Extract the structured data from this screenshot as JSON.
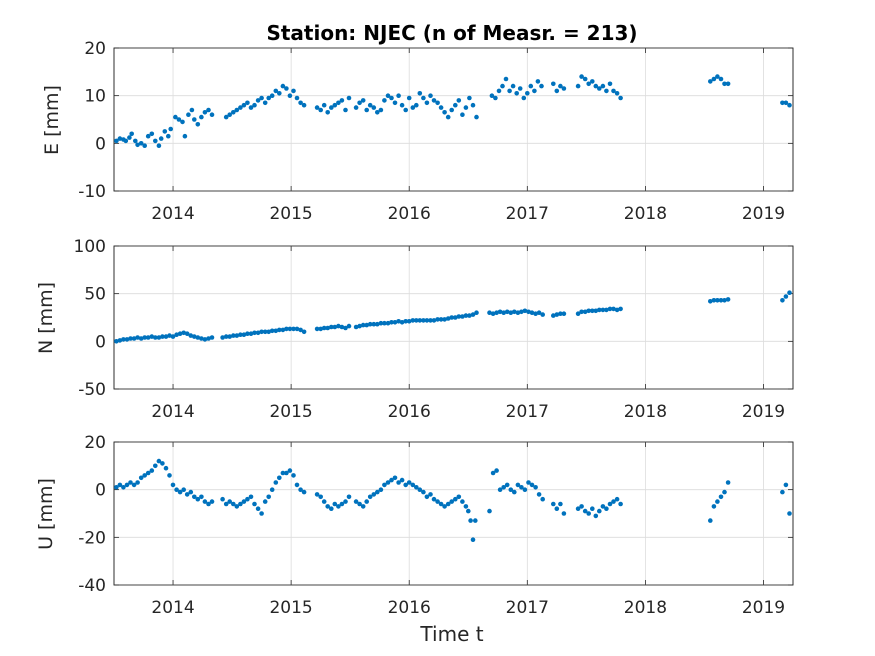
{
  "figure": {
    "title": "Station: NJEC (n of Measr. = 213)",
    "xlabel": "Time t",
    "marker_color": "#0072BD"
  },
  "chart_data": [
    {
      "type": "scatter",
      "ylabel": "E [mm]",
      "xlim": [
        2013.5,
        2019.25
      ],
      "ylim": [
        -10,
        20
      ],
      "xticks": [
        2014,
        2015,
        2016,
        2017,
        2018,
        2019
      ],
      "yticks": [
        -10,
        0,
        10,
        20
      ],
      "grid": true,
      "x": [
        2013.52,
        2013.55,
        2013.58,
        2013.6,
        2013.63,
        2013.65,
        2013.68,
        2013.7,
        2013.73,
        2013.76,
        2013.79,
        2013.82,
        2013.85,
        2013.88,
        2013.9,
        2013.93,
        2013.96,
        2013.98,
        2014.02,
        2014.05,
        2014.08,
        2014.1,
        2014.13,
        2014.16,
        2014.18,
        2014.21,
        2014.24,
        2014.27,
        2014.3,
        2014.33,
        2014.45,
        2014.48,
        2014.51,
        2014.54,
        2014.57,
        2014.6,
        2014.63,
        2014.66,
        2014.69,
        2014.72,
        2014.75,
        2014.78,
        2014.81,
        2014.84,
        2014.87,
        2014.9,
        2014.93,
        2014.96,
        2014.99,
        2015.02,
        2015.05,
        2015.08,
        2015.11,
        2015.22,
        2015.25,
        2015.28,
        2015.31,
        2015.34,
        2015.37,
        2015.4,
        2015.43,
        2015.46,
        2015.49,
        2015.55,
        2015.58,
        2015.61,
        2015.64,
        2015.67,
        2015.7,
        2015.73,
        2015.76,
        2015.79,
        2015.82,
        2015.85,
        2015.88,
        2015.91,
        2015.94,
        2015.97,
        2016.0,
        2016.03,
        2016.06,
        2016.09,
        2016.12,
        2016.15,
        2016.18,
        2016.21,
        2016.24,
        2016.27,
        2016.3,
        2016.33,
        2016.36,
        2016.39,
        2016.42,
        2016.45,
        2016.48,
        2016.51,
        2016.54,
        2016.57,
        2016.7,
        2016.73,
        2016.76,
        2016.79,
        2016.82,
        2016.85,
        2016.88,
        2016.91,
        2016.94,
        2016.97,
        2017.0,
        2017.03,
        2017.06,
        2017.09,
        2017.12,
        2017.22,
        2017.25,
        2017.28,
        2017.31,
        2017.43,
        2017.46,
        2017.49,
        2017.52,
        2017.55,
        2017.58,
        2017.61,
        2017.64,
        2017.67,
        2017.7,
        2017.73,
        2017.76,
        2017.79,
        2018.55,
        2018.58,
        2018.61,
        2018.64,
        2018.67,
        2018.7,
        2019.16,
        2019.19,
        2019.22
      ],
      "y": [
        0.5,
        1.0,
        0.8,
        0.5,
        1.2,
        2.0,
        0.5,
        -0.3,
        0.0,
        -0.5,
        1.5,
        2.0,
        0.5,
        -0.5,
        1.0,
        2.5,
        1.5,
        3.0,
        5.5,
        5.0,
        4.5,
        1.5,
        6.0,
        7.0,
        5.0,
        4.0,
        5.5,
        6.5,
        7.0,
        6.0,
        5.5,
        6.0,
        6.5,
        7.0,
        7.5,
        8.0,
        8.5,
        7.5,
        8.0,
        9.0,
        9.5,
        8.5,
        9.5,
        10.0,
        11.0,
        10.5,
        12.0,
        11.5,
        10.0,
        11.0,
        9.5,
        8.5,
        8.0,
        7.5,
        7.0,
        8.0,
        6.5,
        7.5,
        8.0,
        8.5,
        9.0,
        7.0,
        9.5,
        7.5,
        8.5,
        9.0,
        7.0,
        8.0,
        7.5,
        6.5,
        7.0,
        9.0,
        10.0,
        9.5,
        8.5,
        10.0,
        8.0,
        7.0,
        9.5,
        7.5,
        8.0,
        10.5,
        9.5,
        8.5,
        10.0,
        9.0,
        8.5,
        7.5,
        6.5,
        5.5,
        7.0,
        8.0,
        9.0,
        6.0,
        7.5,
        9.5,
        8.0,
        5.5,
        10.0,
        9.5,
        11.0,
        12.0,
        13.5,
        11.0,
        12.0,
        10.5,
        11.5,
        9.5,
        10.5,
        12.0,
        11.0,
        13.0,
        12.0,
        12.5,
        11.0,
        12.0,
        11.5,
        12.0,
        14.0,
        13.5,
        12.5,
        13.0,
        12.0,
        11.5,
        12.0,
        11.0,
        12.5,
        11.0,
        10.5,
        9.5,
        13.0,
        13.5,
        14.0,
        13.5,
        12.5,
        12.5,
        8.5,
        8.5,
        8.0
      ]
    },
    {
      "type": "scatter",
      "ylabel": "N [mm]",
      "xlim": [
        2013.5,
        2019.25
      ],
      "ylim": [
        -50,
        100
      ],
      "xticks": [
        2014,
        2015,
        2016,
        2017,
        2018,
        2019
      ],
      "yticks": [
        -50,
        0,
        50,
        100
      ],
      "grid": true,
      "x": [
        2013.52,
        2013.55,
        2013.58,
        2013.61,
        2013.64,
        2013.67,
        2013.7,
        2013.73,
        2013.76,
        2013.79,
        2013.82,
        2013.85,
        2013.88,
        2013.91,
        2013.94,
        2013.97,
        2014.0,
        2014.03,
        2014.06,
        2014.09,
        2014.12,
        2014.15,
        2014.18,
        2014.21,
        2014.24,
        2014.27,
        2014.3,
        2014.33,
        2014.42,
        2014.45,
        2014.48,
        2014.51,
        2014.54,
        2014.57,
        2014.6,
        2014.63,
        2014.66,
        2014.69,
        2014.72,
        2014.75,
        2014.78,
        2014.81,
        2014.84,
        2014.87,
        2014.9,
        2014.93,
        2014.96,
        2014.99,
        2015.02,
        2015.05,
        2015.08,
        2015.11,
        2015.22,
        2015.25,
        2015.28,
        2015.31,
        2015.34,
        2015.37,
        2015.4,
        2015.43,
        2015.46,
        2015.49,
        2015.55,
        2015.58,
        2015.61,
        2015.64,
        2015.67,
        2015.7,
        2015.73,
        2015.76,
        2015.79,
        2015.82,
        2015.85,
        2015.88,
        2015.91,
        2015.94,
        2015.97,
        2016.0,
        2016.03,
        2016.06,
        2016.09,
        2016.12,
        2016.15,
        2016.18,
        2016.21,
        2016.24,
        2016.27,
        2016.3,
        2016.33,
        2016.36,
        2016.39,
        2016.42,
        2016.45,
        2016.48,
        2016.51,
        2016.54,
        2016.57,
        2016.68,
        2016.71,
        2016.74,
        2016.77,
        2016.8,
        2016.83,
        2016.86,
        2016.89,
        2016.92,
        2016.95,
        2016.98,
        2017.01,
        2017.04,
        2017.07,
        2017.1,
        2017.13,
        2017.22,
        2017.25,
        2017.28,
        2017.31,
        2017.43,
        2017.46,
        2017.49,
        2017.52,
        2017.55,
        2017.58,
        2017.61,
        2017.64,
        2017.67,
        2017.7,
        2017.73,
        2017.76,
        2017.79,
        2018.55,
        2018.58,
        2018.61,
        2018.64,
        2018.67,
        2018.7,
        2019.16,
        2019.19,
        2019.22
      ],
      "y": [
        0,
        1,
        2,
        2,
        3,
        3,
        4,
        3,
        4,
        4,
        5,
        4,
        4,
        5,
        5,
        6,
        5,
        7,
        8,
        9,
        8,
        6,
        5,
        4,
        3,
        2,
        3,
        4,
        4,
        5,
        5,
        6,
        6,
        7,
        7,
        8,
        8,
        9,
        9,
        10,
        10,
        10,
        11,
        11,
        12,
        12,
        13,
        13,
        13,
        13,
        12,
        10,
        13,
        13,
        14,
        14,
        15,
        15,
        16,
        15,
        14,
        16,
        15,
        16,
        17,
        17,
        18,
        18,
        18,
        19,
        19,
        19,
        20,
        20,
        21,
        20,
        21,
        21,
        22,
        22,
        22,
        22,
        22,
        22,
        22,
        23,
        23,
        23,
        24,
        25,
        25,
        26,
        26,
        27,
        27,
        28,
        30,
        30,
        29,
        30,
        31,
        30,
        31,
        30,
        31,
        30,
        31,
        32,
        31,
        30,
        29,
        30,
        28,
        27,
        28,
        29,
        29,
        29,
        31,
        31,
        32,
        32,
        32,
        33,
        33,
        33,
        34,
        34,
        33,
        34,
        42,
        43,
        43,
        43,
        43,
        44,
        43,
        47,
        51
      ]
    },
    {
      "type": "scatter",
      "ylabel": "U [mm]",
      "xlim": [
        2013.5,
        2019.25
      ],
      "ylim": [
        -40,
        20
      ],
      "xticks": [
        2014,
        2015,
        2016,
        2017,
        2018,
        2019
      ],
      "yticks": [
        -40,
        -20,
        0,
        20
      ],
      "grid": true,
      "x": [
        2013.52,
        2013.55,
        2013.58,
        2013.61,
        2013.64,
        2013.67,
        2013.7,
        2013.73,
        2013.76,
        2013.79,
        2013.82,
        2013.85,
        2013.88,
        2013.91,
        2013.94,
        2013.97,
        2014.0,
        2014.03,
        2014.06,
        2014.09,
        2014.12,
        2014.15,
        2014.18,
        2014.21,
        2014.24,
        2014.27,
        2014.3,
        2014.33,
        2014.42,
        2014.45,
        2014.48,
        2014.51,
        2014.54,
        2014.57,
        2014.6,
        2014.63,
        2014.66,
        2014.69,
        2014.72,
        2014.75,
        2014.78,
        2014.81,
        2014.84,
        2014.87,
        2014.9,
        2014.93,
        2014.96,
        2014.99,
        2015.02,
        2015.05,
        2015.08,
        2015.11,
        2015.22,
        2015.25,
        2015.28,
        2015.31,
        2015.34,
        2015.37,
        2015.4,
        2015.43,
        2015.46,
        2015.49,
        2015.55,
        2015.58,
        2015.61,
        2015.64,
        2015.67,
        2015.7,
        2015.73,
        2015.76,
        2015.79,
        2015.82,
        2015.85,
        2015.88,
        2015.91,
        2015.94,
        2015.97,
        2016.0,
        2016.03,
        2016.06,
        2016.09,
        2016.12,
        2016.15,
        2016.18,
        2016.21,
        2016.24,
        2016.27,
        2016.3,
        2016.33,
        2016.36,
        2016.39,
        2016.42,
        2016.45,
        2016.48,
        2016.5,
        2016.52,
        2016.54,
        2016.56,
        2016.68,
        2016.71,
        2016.74,
        2016.77,
        2016.8,
        2016.83,
        2016.86,
        2016.89,
        2016.92,
        2016.95,
        2016.98,
        2017.01,
        2017.04,
        2017.07,
        2017.1,
        2017.13,
        2017.22,
        2017.25,
        2017.28,
        2017.31,
        2017.43,
        2017.46,
        2017.49,
        2017.52,
        2017.55,
        2017.58,
        2017.61,
        2017.64,
        2017.67,
        2017.7,
        2017.73,
        2017.76,
        2017.79,
        2018.55,
        2018.58,
        2018.61,
        2018.64,
        2018.67,
        2018.7,
        2019.16,
        2019.19,
        2019.22
      ],
      "y": [
        1,
        2,
        1,
        2,
        3,
        2,
        3,
        5,
        6,
        7,
        8,
        10,
        12,
        11,
        9,
        6,
        2,
        0,
        -1,
        0,
        -2,
        -1,
        -3,
        -4,
        -3,
        -5,
        -6,
        -5,
        -4,
        -6,
        -5,
        -6,
        -7,
        -6,
        -5,
        -4,
        -3,
        -6,
        -8,
        -10,
        -5,
        -3,
        0,
        3,
        5,
        7,
        7,
        8,
        6,
        2,
        0,
        -1,
        -2,
        -3,
        -5,
        -7,
        -8,
        -6,
        -7,
        -6,
        -5,
        -3,
        -5,
        -6,
        -7,
        -5,
        -3,
        -2,
        -1,
        0,
        2,
        3,
        4,
        5,
        3,
        4,
        2,
        3,
        2,
        1,
        0,
        -1,
        -3,
        -2,
        -4,
        -5,
        -6,
        -7,
        -6,
        -5,
        -4,
        -3,
        -5,
        -7,
        -9,
        -13,
        -21,
        -13,
        -9,
        7,
        8,
        0,
        1,
        2,
        0,
        -1,
        2,
        1,
        0,
        3,
        2,
        1,
        -2,
        -4,
        -6,
        -8,
        -6,
        -10,
        -8,
        -7,
        -9,
        -10,
        -8,
        -11,
        -9,
        -7,
        -8,
        -6,
        -5,
        -4,
        -6,
        -13,
        -7,
        -5,
        -3,
        -1,
        3,
        -1,
        2,
        -10
      ]
    }
  ]
}
